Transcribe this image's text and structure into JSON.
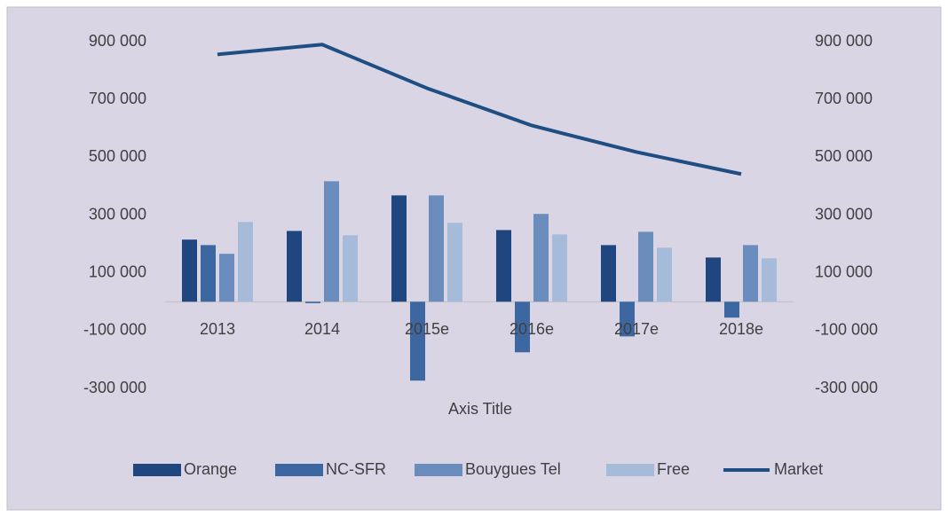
{
  "chart_data": {
    "type": "bar",
    "categories": [
      "2013",
      "2014",
      "2015e",
      "2016e",
      "2017e",
      "2018e"
    ],
    "series": [
      {
        "name": "Orange",
        "color": "#1f467f",
        "values": [
          215000,
          245000,
          368000,
          248000,
          196000,
          153000
        ]
      },
      {
        "name": "NC-SFR",
        "color": "#3d67a0",
        "values": [
          196000,
          -5000,
          -273000,
          -175000,
          -120000,
          -55000
        ]
      },
      {
        "name": "Bouygues Tel",
        "color": "#6a8dbd",
        "values": [
          166000,
          417000,
          368000,
          304000,
          242000,
          196000
        ]
      },
      {
        "name": "Free",
        "color": "#a5bbd9",
        "values": [
          276000,
          230000,
          273000,
          233000,
          187000,
          150000
        ]
      },
      {
        "name": "Market",
        "color": "#1f4e83",
        "type": "line",
        "axis": "y2",
        "values": [
          856000,
          890000,
          739000,
          610000,
          518000,
          442000
        ]
      }
    ],
    "xlabel": "Axis Title",
    "ylim": [
      -300000,
      900000
    ],
    "yticks": [
      {
        "value": -300000,
        "label": "-300 000"
      },
      {
        "value": -100000,
        "label": "-100 000"
      },
      {
        "value": 100000,
        "label": "100 000"
      },
      {
        "value": 300000,
        "label": "300 000"
      },
      {
        "value": 500000,
        "label": "500 000"
      },
      {
        "value": 700000,
        "label": "700 000"
      },
      {
        "value": 900000,
        "label": "900 000"
      }
    ],
    "y2lim": [
      -300000,
      900000
    ],
    "y2ticks": [
      {
        "value": -300000,
        "label": "-300 000"
      },
      {
        "value": -100000,
        "label": "-100 000"
      },
      {
        "value": 100000,
        "label": "100 000"
      },
      {
        "value": 300000,
        "label": "300 000"
      },
      {
        "value": 500000,
        "label": "500 000"
      },
      {
        "value": 700000,
        "label": "700 000"
      },
      {
        "value": 900000,
        "label": "900 000"
      }
    ],
    "legend": "bottom",
    "background": "#d9d5e4"
  }
}
